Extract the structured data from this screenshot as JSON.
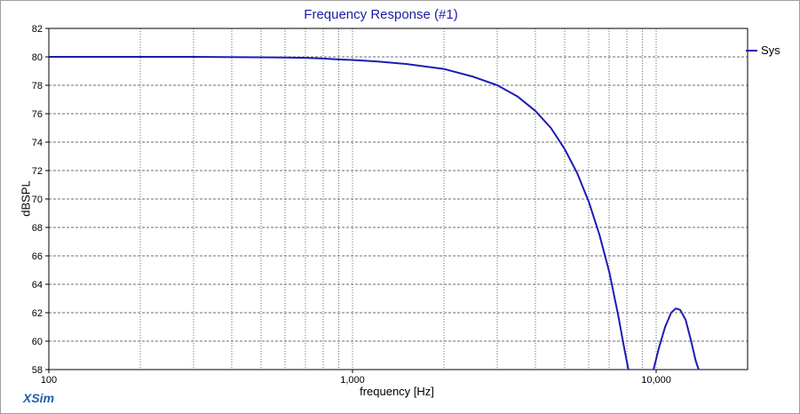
{
  "brand": {
    "name": "XSim",
    "color": "#1f5fa8"
  },
  "chart_data": {
    "type": "line",
    "title": "Frequency Response (#1)",
    "xlabel": "frequency [Hz]",
    "ylabel": "dBSPL",
    "xscale": "log",
    "xlim": [
      100,
      20000
    ],
    "ylim": [
      58,
      82
    ],
    "xticks": [
      100,
      1000,
      10000
    ],
    "xtick_labels": [
      "100",
      "1,000",
      "10,000"
    ],
    "yticks": [
      58,
      60,
      62,
      64,
      66,
      68,
      70,
      72,
      74,
      76,
      78,
      80,
      82
    ],
    "grid": true,
    "legend_position": "right",
    "colors": {
      "series": "#1c1cb4",
      "title": "#1a1aa6",
      "grid": "#6e6e6e"
    },
    "series": [
      {
        "name": "Sys",
        "segments": [
          [
            [
              100,
              80.0
            ],
            [
              200,
              80.0
            ],
            [
              300,
              80.0
            ],
            [
              500,
              79.97
            ],
            [
              600,
              79.95
            ],
            [
              700,
              79.93
            ],
            [
              800,
              79.88
            ],
            [
              900,
              79.82
            ],
            [
              1000,
              79.78
            ],
            [
              1200,
              79.68
            ],
            [
              1500,
              79.5
            ],
            [
              2000,
              79.15
            ],
            [
              2500,
              78.6
            ],
            [
              3000,
              78.0
            ],
            [
              3500,
              77.2
            ],
            [
              4000,
              76.2
            ],
            [
              4500,
              75.0
            ],
            [
              5000,
              73.5
            ],
            [
              5500,
              71.8
            ],
            [
              6000,
              69.8
            ],
            [
              6500,
              67.5
            ],
            [
              7000,
              64.9
            ],
            [
              7500,
              61.8
            ],
            [
              7800,
              59.8
            ],
            [
              8100,
              58.0
            ]
          ],
          [
            [
              9800,
              58.0
            ],
            [
              10200,
              59.5
            ],
            [
              10700,
              61.0
            ],
            [
              11200,
              62.0
            ],
            [
              11600,
              62.3
            ],
            [
              12000,
              62.2
            ],
            [
              12500,
              61.5
            ],
            [
              13000,
              60.1
            ],
            [
              13500,
              58.6
            ],
            [
              13800,
              58.0
            ]
          ]
        ]
      }
    ]
  }
}
